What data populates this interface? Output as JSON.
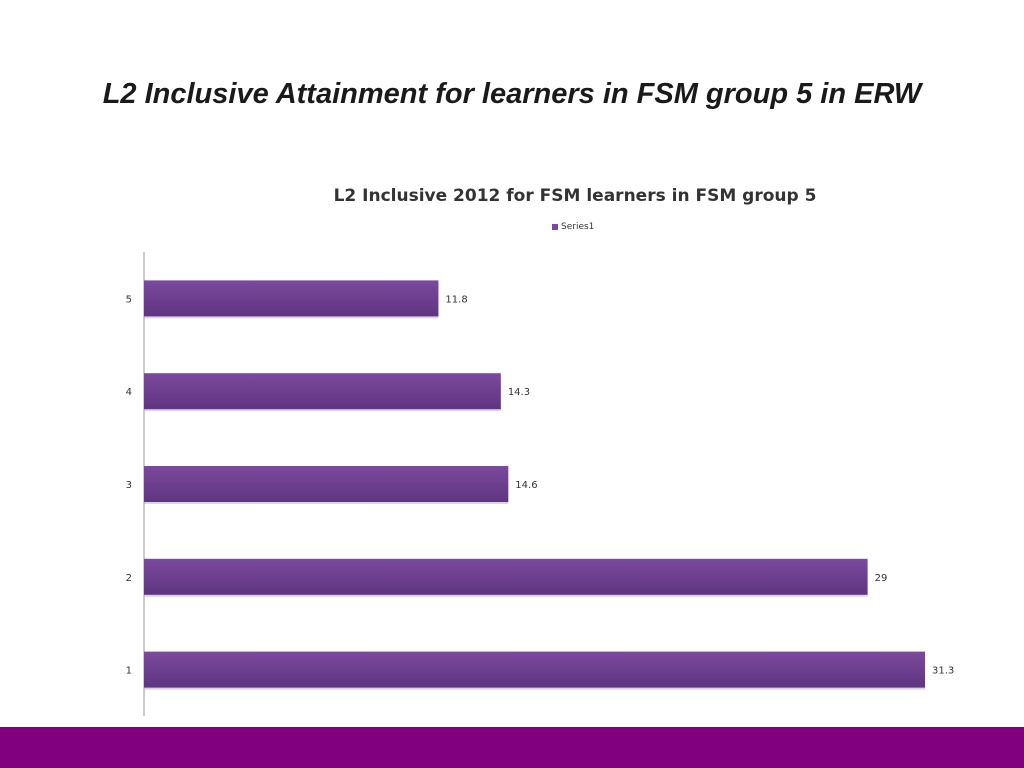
{
  "slide": {
    "title": "L2 Inclusive Attainment for learners in FSM group 5 in ERW"
  },
  "colors": {
    "bar": "#7b4a9e",
    "bar_dark": "#5e3580",
    "footer": "#800080",
    "axis": "#9a9a9a"
  },
  "chart_data": {
    "type": "bar",
    "orientation": "horizontal",
    "title": "L2 Inclusive 2012 for FSM learners in FSM group 5",
    "legend_position": "top",
    "categories": [
      "1",
      "2",
      "3",
      "4",
      "5"
    ],
    "series": [
      {
        "name": "Series1",
        "values": [
          31.3,
          29,
          14.6,
          14.3,
          11.8
        ]
      }
    ],
    "data_labels": [
      "31.3",
      "29",
      "14.6",
      "14.3",
      "11.8"
    ],
    "xlim": [
      0,
      31.3
    ],
    "grid": false
  }
}
